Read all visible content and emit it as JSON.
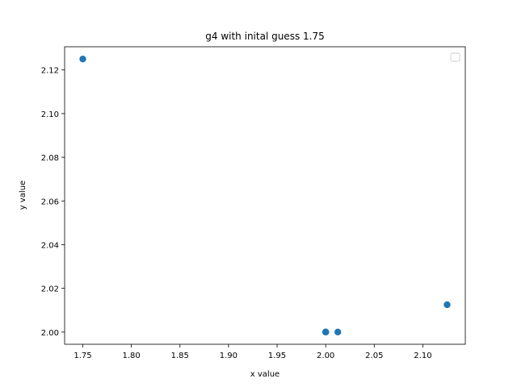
{
  "chart_data": {
    "type": "scatter",
    "title": "g4 with inital guess 1.75",
    "xlabel": "x value",
    "ylabel": "y value",
    "xlim": [
      1.7313,
      2.1437
    ],
    "ylim": [
      1.9944,
      2.1306
    ],
    "x_ticks": [
      1.75,
      1.8,
      1.85,
      1.9,
      1.95,
      2.0,
      2.05,
      2.1
    ],
    "x_tick_labels": [
      "1.75",
      "1.80",
      "1.85",
      "1.90",
      "1.95",
      "2.00",
      "2.05",
      "2.10"
    ],
    "y_ticks": [
      2.0,
      2.02,
      2.04,
      2.06,
      2.08,
      2.1,
      2.12
    ],
    "y_tick_labels": [
      "2.00",
      "2.02",
      "2.04",
      "2.06",
      "2.08",
      "2.10",
      "2.12"
    ],
    "series": [
      {
        "color": "#1f77b4",
        "points": [
          {
            "x": 1.75,
            "y": 2.125
          },
          {
            "x": 2.125,
            "y": 2.0125
          },
          {
            "x": 2.0125,
            "y": 2.0
          },
          {
            "x": 2.0,
            "y": 2.0
          },
          {
            "x": 2.0,
            "y": 2.0
          },
          {
            "x": 2.0,
            "y": 2.0
          }
        ]
      }
    ],
    "grid": false,
    "legend": {
      "placement": "upper right",
      "entries": []
    }
  }
}
